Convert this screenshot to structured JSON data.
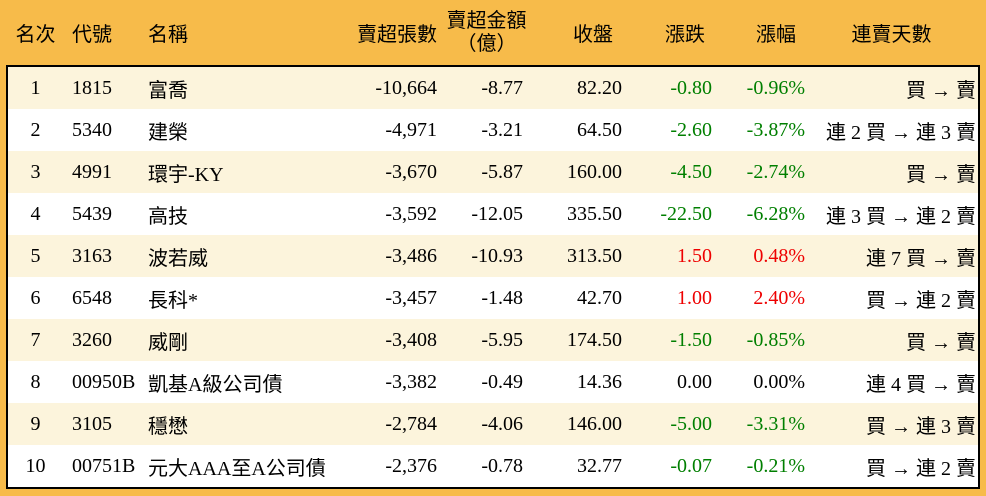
{
  "colors": {
    "frame_orange": "#F7BB4A",
    "row_stripe": "#FCF4DC",
    "row_plain": "#FFFFFF",
    "up_red": "#EE0000",
    "down_green": "#007F00",
    "text_black": "#000000"
  },
  "chart_data": {
    "type": "table",
    "legend_note": "green = decline, red = advance, black = unchanged",
    "columns": [
      {
        "key": "rank",
        "label": "名次"
      },
      {
        "key": "code",
        "label": "代號"
      },
      {
        "key": "name",
        "label": "名稱"
      },
      {
        "key": "volume",
        "label": "賣超張數"
      },
      {
        "key": "amount",
        "label": "賣超金額",
        "sublabel": "（億）"
      },
      {
        "key": "close",
        "label": "收盤"
      },
      {
        "key": "change",
        "label": "漲跌"
      },
      {
        "key": "change_pct",
        "label": "漲幅"
      },
      {
        "key": "streak",
        "label": "連賣天數"
      }
    ],
    "rows": [
      {
        "rank": "1",
        "code": "1815",
        "name": "富喬",
        "volume": "-10,664",
        "amount": "-8.77",
        "close": "82.20",
        "change": "-0.80",
        "change_pct": "-0.96%",
        "streak": "買 → 賣",
        "trend": "down"
      },
      {
        "rank": "2",
        "code": "5340",
        "name": "建榮",
        "volume": "-4,971",
        "amount": "-3.21",
        "close": "64.50",
        "change": "-2.60",
        "change_pct": "-3.87%",
        "streak": "連 2 買 → 連 3 賣",
        "trend": "down"
      },
      {
        "rank": "3",
        "code": "4991",
        "name": "環宇-KY",
        "volume": "-3,670",
        "amount": "-5.87",
        "close": "160.00",
        "change": "-4.50",
        "change_pct": "-2.74%",
        "streak": "買 → 賣",
        "trend": "down"
      },
      {
        "rank": "4",
        "code": "5439",
        "name": "高技",
        "volume": "-3,592",
        "amount": "-12.05",
        "close": "335.50",
        "change": "-22.50",
        "change_pct": "-6.28%",
        "streak": "連 3 買 → 連 2 賣",
        "trend": "down"
      },
      {
        "rank": "5",
        "code": "3163",
        "name": "波若威",
        "volume": "-3,486",
        "amount": "-10.93",
        "close": "313.50",
        "change": "1.50",
        "change_pct": "0.48%",
        "streak": "連 7 買 → 賣",
        "trend": "up"
      },
      {
        "rank": "6",
        "code": "6548",
        "name": "長科*",
        "volume": "-3,457",
        "amount": "-1.48",
        "close": "42.70",
        "change": "1.00",
        "change_pct": "2.40%",
        "streak": "買 → 連 2 賣",
        "trend": "up"
      },
      {
        "rank": "7",
        "code": "3260",
        "name": "威剛",
        "volume": "-3,408",
        "amount": "-5.95",
        "close": "174.50",
        "change": "-1.50",
        "change_pct": "-0.85%",
        "streak": "買 → 賣",
        "trend": "down"
      },
      {
        "rank": "8",
        "code": "00950B",
        "name": "凱基A級公司債",
        "volume": "-3,382",
        "amount": "-0.49",
        "close": "14.36",
        "change": "0.00",
        "change_pct": "0.00%",
        "streak": "連 4 買 → 賣",
        "trend": "flat"
      },
      {
        "rank": "9",
        "code": "3105",
        "name": "穩懋",
        "volume": "-2,784",
        "amount": "-4.06",
        "close": "146.00",
        "change": "-5.00",
        "change_pct": "-3.31%",
        "streak": "買 → 連 3 賣",
        "trend": "down"
      },
      {
        "rank": "10",
        "code": "00751B",
        "name": "元大AAA至A公司債",
        "volume": "-2,376",
        "amount": "-0.78",
        "close": "32.77",
        "change": "-0.07",
        "change_pct": "-0.21%",
        "streak": "買 → 連 2 賣",
        "trend": "down"
      }
    ]
  }
}
